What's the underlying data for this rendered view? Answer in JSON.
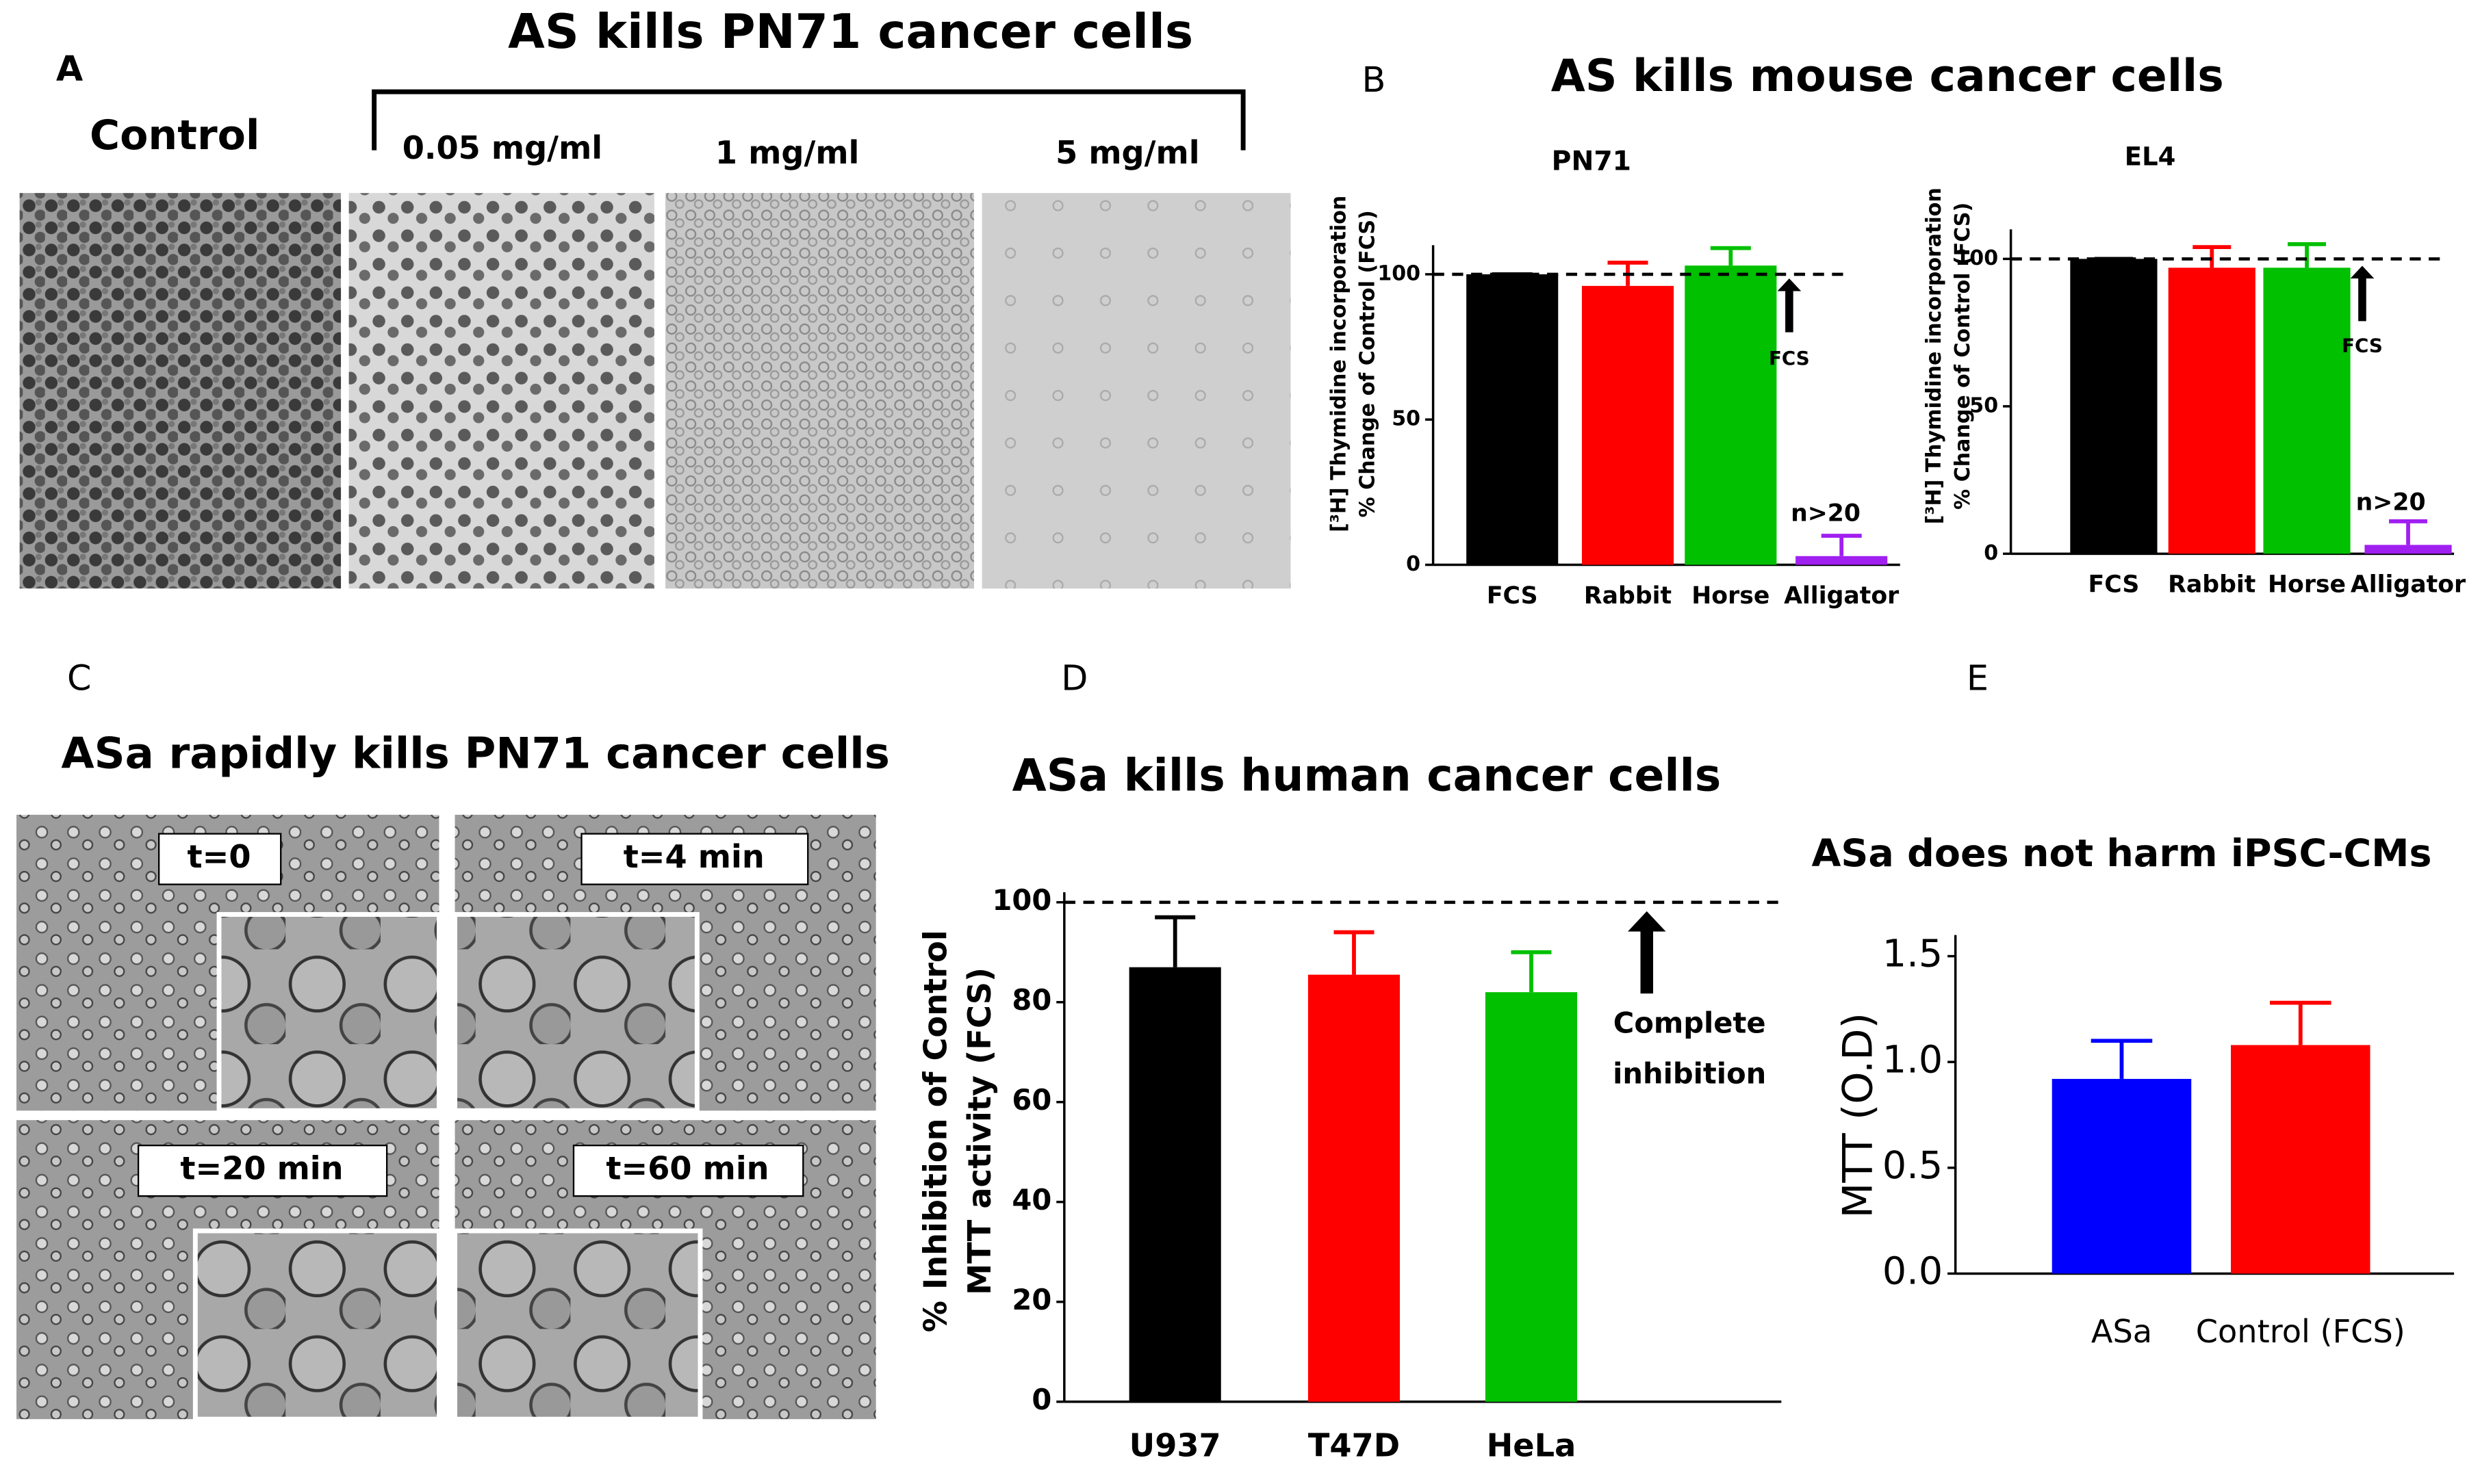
{
  "panel_labels": [
    "A",
    "B",
    "C",
    "D",
    "E"
  ],
  "panel_a": {
    "title": "AS  kills PN71 cancer cells",
    "images": [
      "Control",
      "0.05 mg/ml",
      "1 mg/ml",
      "5 mg/ml"
    ]
  },
  "panel_b_title": "AS kills  mouse cancer cells",
  "panel_c": {
    "title": "ASa rapidly kills PN71 cancer cells",
    "images": [
      "t=0",
      "t=4 min",
      "t=20 min",
      "t=60 min"
    ]
  },
  "chart_data": [
    {
      "type": "bar",
      "title": "PN71",
      "y_label": [
        "[³H] Thymidine incorporation",
        "% Change of Control (FCS)"
      ],
      "categories": [
        "FCS",
        "Rabbit",
        "Horse",
        "Alligator"
      ],
      "values": [
        100,
        96,
        103,
        3
      ],
      "errors": [
        0,
        8,
        6,
        7
      ],
      "colors": [
        "#000000",
        "#ff0000",
        "#00c000",
        "#a020f0"
      ],
      "ylim": [
        0,
        110
      ],
      "yticks": [
        0,
        50,
        100
      ],
      "reference_line": 100,
      "annotations": [
        "FCS",
        "n>20"
      ]
    },
    {
      "type": "bar",
      "title": "EL4",
      "y_label": [
        "[³H] Thymidine incorporation",
        "% Change of Control (FCS)"
      ],
      "categories": [
        "FCS",
        "Rabbit",
        "Horse",
        "Alligator"
      ],
      "values": [
        100,
        97,
        97,
        3
      ],
      "errors": [
        0,
        7,
        8,
        8
      ],
      "colors": [
        "#000000",
        "#ff0000",
        "#00c000",
        "#a020f0"
      ],
      "ylim": [
        0,
        110
      ],
      "yticks": [
        0,
        50,
        100
      ],
      "reference_line": 100,
      "annotations": [
        "FCS",
        "n>20"
      ]
    },
    {
      "type": "bar",
      "title": "ASa kills human cancer cells",
      "y_label": [
        "% Inhibition of Control",
        "MTT activity (FCS)"
      ],
      "categories": [
        "U937",
        "T47D",
        "HeLa"
      ],
      "values": [
        87,
        85.5,
        82
      ],
      "errors": [
        10,
        8.5,
        8
      ],
      "colors": [
        "#000000",
        "#ff0000",
        "#00c000"
      ],
      "ylim": [
        0,
        102
      ],
      "yticks": [
        0,
        20,
        40,
        60,
        80,
        100
      ],
      "reference_line": 100,
      "annotations": [
        "Complete",
        "inhibition"
      ]
    },
    {
      "type": "bar",
      "title": "ASa does not harm iPSC-CMs",
      "y_label": [
        "MTT (O.D)"
      ],
      "categories": [
        "ASa",
        "Control (FCS)"
      ],
      "values": [
        0.92,
        1.08
      ],
      "errors": [
        0.18,
        0.2
      ],
      "colors": [
        "#0000ff",
        "#ff0000"
      ],
      "ylim": [
        0,
        1.6
      ],
      "yticks": [
        {
          "value": 0,
          "label": "0.0"
        },
        {
          "value": 0.5,
          "label": "0.5"
        },
        {
          "value": 1,
          "label": "1.0"
        },
        {
          "value": 1.5,
          "label": "1.5"
        }
      ]
    }
  ]
}
